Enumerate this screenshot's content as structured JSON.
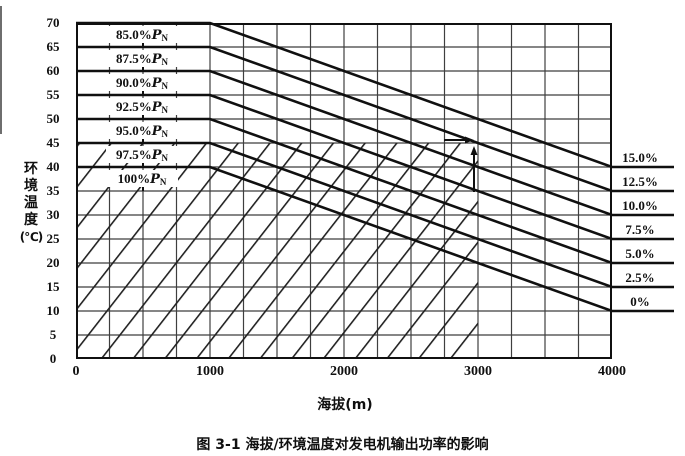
{
  "figure": {
    "caption": "图 3-1  海拔/环境温度对发电机输出功率的影响"
  },
  "chart_data": {
    "type": "line",
    "title": "图 3-1  海拔/环境温度对发电机输出功率的影响",
    "xlabel": "海拔(m)",
    "ylabel": "环境温度(℃)",
    "ylabel_chars": [
      "环",
      "境",
      "温",
      "度",
      "(℃)"
    ],
    "xlim": [
      0,
      4000
    ],
    "ylim": [
      0,
      70
    ],
    "x_major_ticks": [
      0,
      1000,
      2000,
      3000,
      4000
    ],
    "x_grid_step": 250,
    "y_tick_step": 5,
    "grid": true,
    "legend_position": "none",
    "power_symbol": {
      "base": "P",
      "sub": "N"
    },
    "series": [
      {
        "name": "85.0%PN",
        "left_label": "85.0%",
        "right_label": "15.0%",
        "points": [
          [
            0,
            70
          ],
          [
            1000,
            70
          ],
          [
            4000,
            40
          ]
        ]
      },
      {
        "name": "87.5%PN",
        "left_label": "87.5%",
        "right_label": "12.5%",
        "points": [
          [
            0,
            65
          ],
          [
            1000,
            65
          ],
          [
            4000,
            35
          ]
        ]
      },
      {
        "name": "90.0%PN",
        "left_label": "90.0%",
        "right_label": "10.0%",
        "points": [
          [
            0,
            60
          ],
          [
            1000,
            60
          ],
          [
            4000,
            30
          ]
        ]
      },
      {
        "name": "92.5%PN",
        "left_label": "92.5%",
        "right_label": "7.5%",
        "points": [
          [
            0,
            55
          ],
          [
            1000,
            55
          ],
          [
            4000,
            25
          ]
        ]
      },
      {
        "name": "95.0%PN",
        "left_label": "95.0%",
        "right_label": "5.0%",
        "points": [
          [
            0,
            50
          ],
          [
            1000,
            50
          ],
          [
            4000,
            20
          ]
        ]
      },
      {
        "name": "97.5%PN",
        "left_label": "97.5%",
        "right_label": "2.5%",
        "points": [
          [
            0,
            45
          ],
          [
            1000,
            45
          ],
          [
            4000,
            15
          ]
        ]
      },
      {
        "name": "100%PN",
        "left_label": "100%",
        "right_label": "0%",
        "points": [
          [
            0,
            40
          ],
          [
            1000,
            40
          ],
          [
            4000,
            10
          ]
        ]
      }
    ],
    "hatch_region": {
      "x_range": [
        0,
        3000
      ],
      "y_range": [
        0,
        45
      ]
    },
    "annotation": {
      "arrow_point": [
        3000,
        45
      ]
    }
  }
}
